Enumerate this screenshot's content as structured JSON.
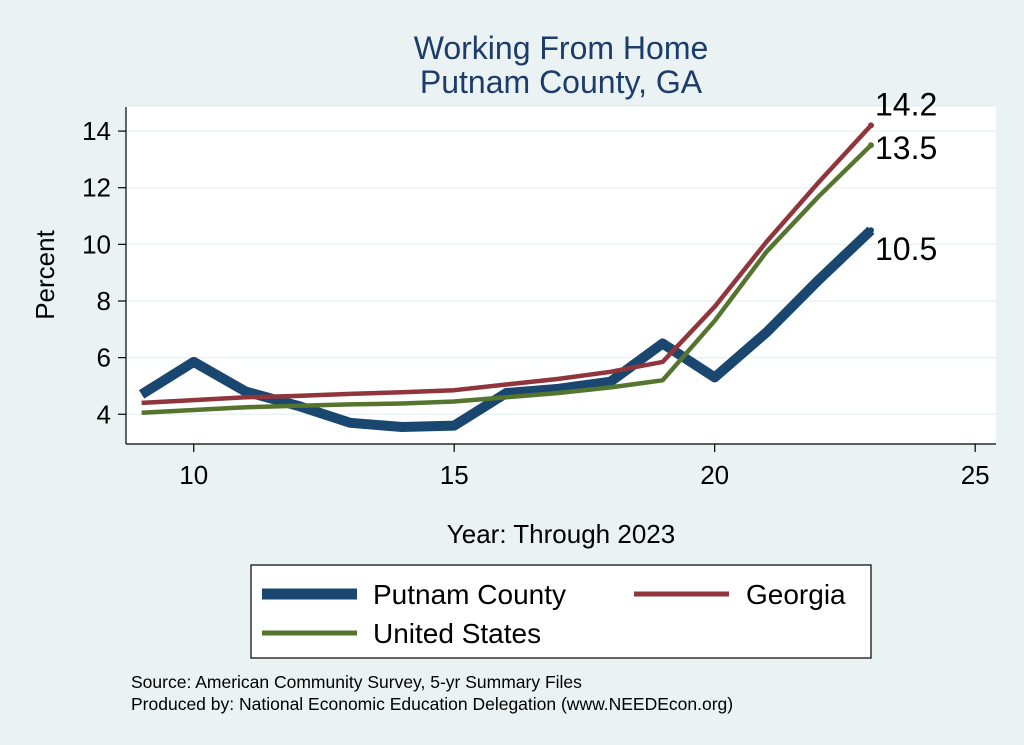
{
  "chart_data": {
    "type": "line",
    "title": [
      "Working From Home",
      "Putnam County, GA"
    ],
    "xlabel": "Year: Through 2023",
    "ylabel": "Percent",
    "xlim": [
      8.7,
      25.4
    ],
    "ylim": [
      2.95,
      14.85
    ],
    "xticks": [
      10,
      15,
      20,
      25
    ],
    "yticks": [
      4,
      6,
      8,
      10,
      12,
      14
    ],
    "grid": true,
    "legend_position": "bottom",
    "x": [
      9,
      10,
      11,
      12,
      13,
      14,
      15,
      16,
      17,
      18,
      19,
      20,
      21,
      22,
      23
    ],
    "series": [
      {
        "name": "Putnam County",
        "color": "#1a476f",
        "values": [
          4.7,
          5.85,
          4.8,
          4.3,
          3.7,
          3.55,
          3.6,
          4.75,
          4.9,
          5.15,
          6.5,
          5.3,
          6.9,
          8.75,
          10.5
        ],
        "end_label": "10.5"
      },
      {
        "name": "Georgia",
        "color": "#90353b",
        "values": [
          4.4,
          4.5,
          4.6,
          4.65,
          4.72,
          4.78,
          4.85,
          5.05,
          5.25,
          5.5,
          5.85,
          7.8,
          10.1,
          12.2,
          14.2
        ],
        "end_label": "14.2"
      },
      {
        "name": "United States",
        "color": "#55752f",
        "values": [
          4.05,
          4.15,
          4.25,
          4.3,
          4.35,
          4.38,
          4.45,
          4.6,
          4.75,
          4.95,
          5.2,
          7.3,
          9.75,
          11.7,
          13.5
        ],
        "end_label": "13.5"
      }
    ]
  },
  "notes": [
    "Source: American Community Survey, 5-yr Summary Files",
    "Produced by: National Economic Education Delegation (www.NEEDEcon.org)"
  ]
}
